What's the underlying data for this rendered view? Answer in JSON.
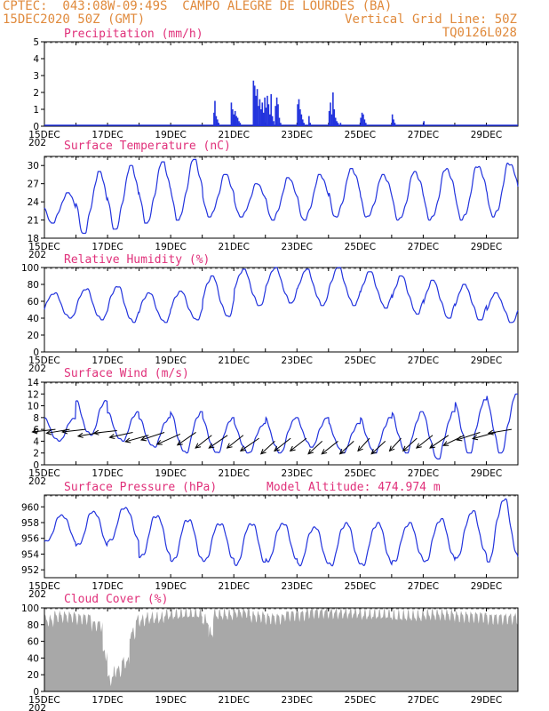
{
  "header": {
    "line1_left": "CPTEC:  043:08W-09:49S  CAMPO ALEGRE DE LOURDES (BA)",
    "line2_left": "15DEC2020 50Z (GMT)",
    "line2_right": "Vertical Grid Line: 50Z",
    "line3_right": "TQ0126L028",
    "colors": {
      "header": "#e08a3c",
      "title": "#e0307a",
      "series": "#2233dd",
      "cloud": "#a8a8a8"
    }
  },
  "x_axis": {
    "tick_labels": [
      "15DEC",
      "17DEC",
      "19DEC",
      "21DEC",
      "23DEC",
      "25DEC",
      "27DEC",
      "29DEC"
    ],
    "year_stub": "202",
    "days": 15
  },
  "chart_data": [
    {
      "id": "precip",
      "type": "bar",
      "title": "Precipitation (mm/h)",
      "ylim": [
        0,
        5
      ],
      "yticks": [
        0,
        1,
        2,
        3,
        4,
        5
      ],
      "bars": [
        [
          5.35,
          0.8
        ],
        [
          5.38,
          1.5
        ],
        [
          5.42,
          0.6
        ],
        [
          5.46,
          0.4
        ],
        [
          5.5,
          0.2
        ],
        [
          5.9,
          1.4
        ],
        [
          5.94,
          1.0
        ],
        [
          5.98,
          0.7
        ],
        [
          6.02,
          0.9
        ],
        [
          6.06,
          0.6
        ],
        [
          6.1,
          0.5
        ],
        [
          6.14,
          0.3
        ],
        [
          6.18,
          0.2
        ],
        [
          6.6,
          2.7
        ],
        [
          6.64,
          2.4
        ],
        [
          6.68,
          1.8
        ],
        [
          6.72,
          2.2
        ],
        [
          6.76,
          1.2
        ],
        [
          6.8,
          1.6
        ],
        [
          6.84,
          1.0
        ],
        [
          6.88,
          1.4
        ],
        [
          6.92,
          0.8
        ],
        [
          6.96,
          1.7
        ],
        [
          7.0,
          1.1
        ],
        [
          7.04,
          1.8
        ],
        [
          7.08,
          1.3
        ],
        [
          7.12,
          0.7
        ],
        [
          7.16,
          1.9
        ],
        [
          7.2,
          0.6
        ],
        [
          7.24,
          0.3
        ],
        [
          7.3,
          1.2
        ],
        [
          7.34,
          1.7
        ],
        [
          7.38,
          1.3
        ],
        [
          7.42,
          0.5
        ],
        [
          7.46,
          0.2
        ],
        [
          8.0,
          1.3
        ],
        [
          8.04,
          1.6
        ],
        [
          8.08,
          1.0
        ],
        [
          8.12,
          0.7
        ],
        [
          8.16,
          0.4
        ],
        [
          8.2,
          0.2
        ],
        [
          8.36,
          0.6
        ],
        [
          8.4,
          0.2
        ],
        [
          9.0,
          0.9
        ],
        [
          9.04,
          1.4
        ],
        [
          9.08,
          0.7
        ],
        [
          9.12,
          2.0
        ],
        [
          9.16,
          1.0
        ],
        [
          9.2,
          0.5
        ],
        [
          9.24,
          0.3
        ],
        [
          9.28,
          0.2
        ],
        [
          9.36,
          0.2
        ],
        [
          10.0,
          0.5
        ],
        [
          10.04,
          0.8
        ],
        [
          10.08,
          0.7
        ],
        [
          10.12,
          0.4
        ],
        [
          10.16,
          0.2
        ],
        [
          11.0,
          0.7
        ],
        [
          11.04,
          0.4
        ],
        [
          11.08,
          0.2
        ],
        [
          12.0,
          0.3
        ]
      ]
    },
    {
      "id": "temp",
      "type": "line",
      "title": "Surface Temperature (nC)",
      "ylim": [
        18,
        31.5
      ],
      "yticks": [
        18,
        21,
        24,
        27,
        30
      ],
      "amplitude_max": [
        25.5,
        29,
        30,
        30.6,
        31.0,
        28.5,
        27,
        28,
        28.5,
        29.5,
        28.5,
        29,
        29.5,
        30,
        30.5,
        30.2
      ],
      "daily_min": [
        20.5,
        18.8,
        19.5,
        20.5,
        21.0,
        21.5,
        21.5,
        21.0,
        21.0,
        21.5,
        21.5,
        21.0,
        21.0,
        21.0,
        21.5,
        22
      ]
    },
    {
      "id": "rh",
      "type": "line",
      "title": "Relative Humidity (%)",
      "ylim": [
        0,
        100
      ],
      "yticks": [
        0,
        20,
        40,
        60,
        80,
        100
      ],
      "daily_max": [
        70,
        75,
        78,
        70,
        72,
        90,
        98,
        100,
        98,
        100,
        95,
        90,
        85,
        80,
        70,
        65
      ],
      "daily_min": [
        40,
        38,
        35,
        35,
        38,
        42,
        55,
        58,
        55,
        55,
        52,
        45,
        40,
        38,
        35,
        40
      ]
    },
    {
      "id": "wind",
      "type": "line",
      "title": "Surface Wind (m/s)",
      "ylim": [
        0,
        14
      ],
      "yticks": [
        0,
        2,
        4,
        6,
        8,
        10,
        12,
        14
      ],
      "daily_max": [
        8,
        11,
        9,
        8,
        9,
        8,
        7,
        8,
        8,
        7,
        8,
        9,
        9,
        11,
        12,
        11
      ],
      "daily_min": [
        4,
        5,
        4,
        3,
        2,
        2,
        2,
        2,
        3,
        2,
        2,
        2,
        1,
        2,
        2,
        3
      ],
      "arrows": [
        [
          0.35,
          6,
          -1,
          -0.2
        ],
        [
          0.8,
          6,
          -1,
          -0.3
        ],
        [
          1.3,
          6,
          -1,
          -0.2
        ],
        [
          1.8,
          5.5,
          -1,
          -0.3
        ],
        [
          2.3,
          5.8,
          -1,
          -0.2
        ],
        [
          2.8,
          5.5,
          -1,
          -0.4
        ],
        [
          3.3,
          5,
          -1,
          -0.5
        ],
        [
          3.8,
          5.5,
          -1,
          -0.6
        ],
        [
          4.3,
          5.2,
          -1,
          -0.8
        ],
        [
          4.8,
          5.5,
          -0.8,
          -1
        ],
        [
          5.3,
          5,
          -0.7,
          -1
        ],
        [
          5.8,
          5,
          -0.8,
          -1
        ],
        [
          6.3,
          5,
          -0.7,
          -1
        ],
        [
          6.8,
          4.5,
          -0.8,
          -1
        ],
        [
          7.3,
          4,
          -0.6,
          -1
        ],
        [
          7.8,
          4.5,
          -0.7,
          -1
        ],
        [
          8.3,
          4.5,
          -0.7,
          -1
        ],
        [
          8.8,
          4,
          -0.6,
          -1
        ],
        [
          9.3,
          4,
          -0.7,
          -1
        ],
        [
          9.8,
          4,
          -0.6,
          -1
        ],
        [
          10.3,
          4.5,
          -0.5,
          -1
        ],
        [
          10.8,
          4,
          -0.6,
          -1
        ],
        [
          11.3,
          4.5,
          -0.5,
          -1
        ],
        [
          11.8,
          4.5,
          -0.6,
          -1
        ],
        [
          12.3,
          5,
          -0.7,
          -1
        ],
        [
          12.8,
          5,
          -0.8,
          -1
        ],
        [
          13.3,
          5,
          -0.9,
          -0.8
        ],
        [
          13.8,
          5.5,
          -1,
          -0.6
        ],
        [
          14.3,
          5.5,
          -1,
          -0.5
        ],
        [
          14.8,
          6,
          -1,
          -0.3
        ]
      ]
    },
    {
      "id": "pres",
      "type": "line",
      "title": "Surface Pressure (hPa)",
      "annotation": "Model Altitude: 474.974 m",
      "ylim": [
        951,
        961.5
      ],
      "yticks": [
        952,
        954,
        956,
        958,
        960
      ],
      "daily_max": [
        959,
        959.5,
        960,
        959,
        958.5,
        958,
        958,
        958,
        957.5,
        958,
        958,
        958,
        958.5,
        959.5,
        961,
        959
      ],
      "daily_min": [
        955.5,
        955,
        955.5,
        953.5,
        953,
        953,
        952.5,
        953,
        952.5,
        952.5,
        952.5,
        953,
        953,
        953.5,
        953,
        954
      ]
    },
    {
      "id": "cloud",
      "type": "area",
      "title": "Cloud Cover (%)",
      "ylim": [
        0,
        100
      ],
      "yticks": [
        0,
        20,
        40,
        60,
        80,
        100
      ],
      "segments": [
        [
          0,
          0.3,
          85
        ],
        [
          0.3,
          1.0,
          90
        ],
        [
          1.0,
          1.5,
          88
        ],
        [
          1.5,
          1.85,
          80
        ],
        [
          1.85,
          2.0,
          45
        ],
        [
          2.0,
          2.2,
          15
        ],
        [
          2.2,
          2.45,
          25
        ],
        [
          2.45,
          2.7,
          35
        ],
        [
          2.7,
          2.9,
          70
        ],
        [
          2.9,
          3.2,
          85
        ],
        [
          3.2,
          3.8,
          88
        ],
        [
          3.8,
          4.3,
          92
        ],
        [
          4.3,
          5.0,
          93
        ],
        [
          5.0,
          5.2,
          85
        ],
        [
          5.2,
          5.35,
          70
        ],
        [
          5.35,
          6.0,
          92
        ],
        [
          6.0,
          6.5,
          95
        ],
        [
          6.5,
          7.0,
          90
        ],
        [
          7.0,
          7.6,
          88
        ],
        [
          7.6,
          8.3,
          92
        ],
        [
          8.3,
          9.0,
          95
        ],
        [
          9.0,
          10.0,
          94
        ],
        [
          10.0,
          11.0,
          92
        ],
        [
          11.0,
          12.0,
          90
        ],
        [
          12.0,
          13.0,
          92
        ],
        [
          13.0,
          14.0,
          90
        ],
        [
          14.0,
          15,
          88
        ]
      ]
    }
  ]
}
